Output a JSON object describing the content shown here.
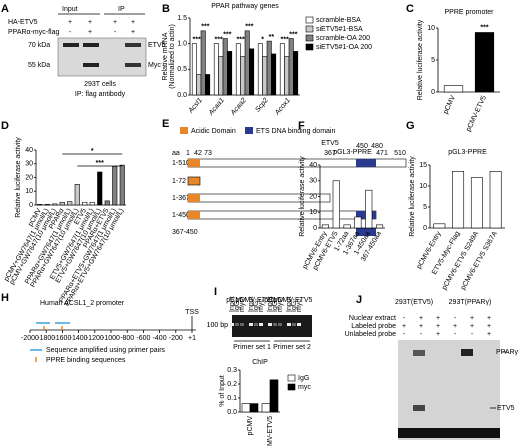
{
  "panel_labels": [
    "A",
    "B",
    "C",
    "D",
    "E",
    "F",
    "G",
    "H",
    "I",
    "J"
  ],
  "chart_data": [
    {
      "type": "bar",
      "title": "PPAR pathway genes",
      "y_label": [
        "Relative mRNA",
        "(Normalized to actin)"
      ],
      "categories": [
        "Acsl1",
        "Acaa1",
        "Acaa2",
        "Scp2",
        "Acox1"
      ],
      "series": [
        {
          "name": "scramble-BSA",
          "color": "#ffffff",
          "values": [
            1.0,
            1.0,
            1.0,
            1.0,
            1.0
          ]
        },
        {
          "name": "siETV5#1-BSA",
          "color": "#c8c8c8",
          "values": [
            0.4,
            0.75,
            0.75,
            0.75,
            0.75
          ]
        },
        {
          "name": "scramble-OA 200",
          "color": "#808080",
          "values": [
            1.25,
            1.1,
            1.25,
            1.05,
            1.1
          ]
        },
        {
          "name": "siETV5#1-OA 200",
          "color": "#000000",
          "values": [
            0.4,
            0.85,
            0.9,
            0.8,
            0.85
          ]
        }
      ],
      "ylim": [
        0,
        1.5
      ],
      "yticks": [
        {
          "value": 0,
          "label": "0.0"
        },
        {
          "value": 0.5,
          "label": "0.5"
        },
        {
          "value": 1,
          "label": "1.0"
        },
        {
          "value": 1.5,
          "label": "1.5"
        }
      ],
      "annotations": [
        "***",
        "***",
        "***",
        "***",
        "***",
        "***",
        "*",
        "**",
        "***",
        "***"
      ]
    },
    {
      "type": "bar",
      "title": "PPRE promoter",
      "y_label": [
        "Relative luciferase activity"
      ],
      "categories": [
        "pCMV",
        "pCMV-ETV5"
      ],
      "values": [
        1,
        9.3
      ],
      "colors": [
        "#ffffff",
        "#000000"
      ],
      "ylim": [
        0,
        10
      ],
      "yticks": [
        0,
        5,
        10
      ],
      "annotations": [
        "***"
      ]
    },
    {
      "type": "bar",
      "y_label": [
        "Relative luciferase activity"
      ],
      "categories": [
        "pCMV",
        "pCMV+GW7647(1 μmol/L)",
        "pCMV+GW7647(10 μmol/L)",
        "PPARα",
        "PPARα+GW7647(1 μmol/L)",
        "PPARα+GW7647(10 μmol/L)",
        "ETV5",
        "ETV5+GW7647(1 μmol/L)",
        "ETV5+GW7647(10 μmol/L)",
        "PPARα+ETV5",
        "PPARα+ETV5+GW7647(1 μmol/L)",
        "PPARα+ETV5+GW7647(10 μmol/L)"
      ],
      "values": [
        0.5,
        0.5,
        0.8,
        2,
        2.5,
        15,
        2,
        2,
        24,
        3,
        28,
        29
      ],
      "colors": [
        "#ffffff",
        "#ffffff",
        "#ffffff",
        "#c8c8c8",
        "#c8c8c8",
        "#c8c8c8",
        "#ffffff",
        "#ffffff",
        "#000000",
        "#808080",
        "#808080",
        "#808080"
      ],
      "ylim": [
        0,
        40
      ],
      "yticks": [
        0,
        10,
        20,
        30,
        40
      ],
      "annotations": [
        "***",
        "*"
      ]
    },
    {
      "type": "bar",
      "title": "pGL3-PPRE",
      "y_label": [
        "Relative luciferase activity"
      ],
      "categories": [
        "pCMV6-Entry",
        "pCMV6-ETV5",
        "1-72aa",
        "1-367aa",
        "1-450aa",
        "367-450aa"
      ],
      "values": [
        2,
        30,
        2,
        7,
        24,
        2
      ],
      "color": "#ffffff",
      "ylim": [
        0,
        40
      ],
      "yticks": [
        0,
        10,
        20,
        30,
        40
      ]
    },
    {
      "type": "bar",
      "title": "pGL3-PPRE",
      "y_label": [
        "Relative luciferase activity"
      ],
      "categories": [
        "pCMV6-Entry",
        "ETV5-Myc-Flag",
        "pCMV6-ETV5 S249A",
        "pCMV6-ETV5 S367A"
      ],
      "values": [
        1,
        13.5,
        12,
        13.5
      ],
      "color": "#ffffff",
      "ylim": [
        0,
        15
      ],
      "yticks": [
        0,
        5,
        10,
        15
      ]
    },
    {
      "type": "bar",
      "title": "ChIP",
      "y_label": [
        "% of Input"
      ],
      "categories": [
        "pCMV",
        "pCMV-ETV5"
      ],
      "series": [
        {
          "name": "IgG",
          "color": "#ffffff",
          "values": [
            0.06,
            0.06
          ]
        },
        {
          "name": "myc",
          "color": "#000000",
          "values": [
            0.06,
            0.23
          ]
        }
      ],
      "ylim": [
        0,
        0.3
      ],
      "yticks": [
        {
          "value": 0,
          "label": "0.0"
        },
        {
          "value": 0.1,
          "label": "0.1"
        },
        {
          "value": 0.2,
          "label": "0.2"
        },
        {
          "value": 0.3,
          "label": "0.3"
        }
      ]
    }
  ],
  "blot_a": {
    "input": "Input",
    "ip": "IP",
    "rows": [
      {
        "label": "HA-ETV5",
        "signs": [
          "+",
          "+",
          "+",
          "+"
        ]
      },
      {
        "label": "PPARα-myc-flag",
        "signs": [
          "-",
          "+",
          "-",
          "+"
        ]
      }
    ],
    "markers": [
      "70 kDa",
      "55 kDa"
    ],
    "bands": [
      "ETV5",
      "Myc"
    ],
    "cells": "293T cells",
    "note": "IP: flag antibody"
  },
  "diagram_e": {
    "legend": [
      "Acidic Domain",
      "ETS DNA binding domain"
    ],
    "protein": "ETV5",
    "aa": "aa",
    "positions": [
      "1",
      "42",
      "73",
      "367",
      "450",
      "480",
      "471",
      "510"
    ],
    "constructs": [
      "1-510",
      "1-72",
      "1-367",
      "1-450",
      "367-450"
    ]
  },
  "promoter_h": {
    "title": "Human ACSL1_2 promoter",
    "tss": "TSS",
    "ticks": [
      "-2000",
      "-1800",
      "-1600",
      "-1400",
      "-1200",
      "-1000",
      "-800",
      "-600",
      "-400",
      "-200",
      "+1"
    ],
    "legend": [
      "Sequence amplified using primer pairs",
      "PPRE binding sequences"
    ]
  },
  "gel_i": {
    "groups": [
      "pCMV",
      "pCMV-ETV5",
      "pCMV",
      "pCMV-ETV5"
    ],
    "lanes": [
      "Input",
      "IgG",
      "myc"
    ],
    "marker": "100 bp",
    "primers": [
      "Primer set 1",
      "Primer set 2"
    ]
  },
  "gel_j": {
    "cells": [
      "293T(ETV5)",
      "293T(PPARγ)"
    ],
    "rows": [
      {
        "label": "Nuclear extract",
        "signs": [
          "-",
          "+",
          "+",
          "-",
          "+",
          "+"
        ]
      },
      {
        "label": "Labeled probe",
        "signs": [
          "+",
          "+",
          "+",
          "+",
          "+",
          "+"
        ]
      },
      {
        "label": "Unlabeled probe",
        "signs": [
          "-",
          "-",
          "+",
          "-",
          "-",
          "+"
        ]
      }
    ],
    "bands": [
      "PPARγ",
      "ETV5"
    ]
  }
}
